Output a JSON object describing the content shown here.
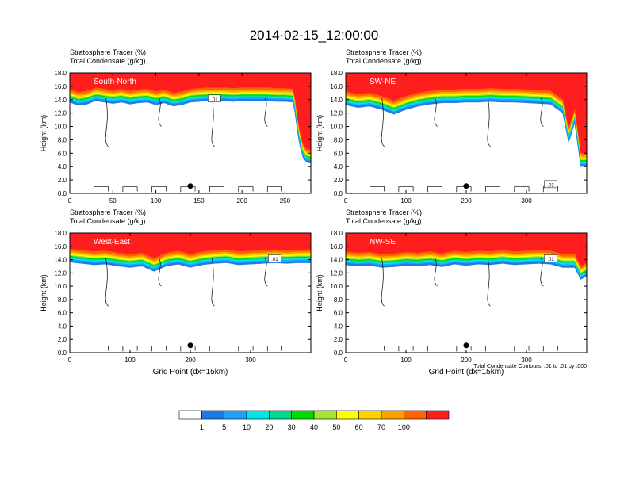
{
  "main_title": "2014-02-15_12:00:00",
  "panel_header": {
    "line1": "Stratosphere Tracer   (%)",
    "line2": "Total Condensate   (g/kg)"
  },
  "y_axis_label": "Height (km)",
  "x_axis_label": "Grid Point (dx=15km)",
  "contour_note": "Total Condensate Contours: .01 to .01 by .000",
  "contour_labels": [
    ".01",
    ".01",
    ".01",
    ".01"
  ],
  "colors": {
    "palette": [
      "#ffffff",
      "#1e7ae6",
      "#1ea0ff",
      "#00e6e6",
      "#00d88c",
      "#00dc00",
      "#a0e632",
      "#ffff00",
      "#ffd200",
      "#ffa000",
      "#ff6400",
      "#ff1e1e"
    ]
  },
  "chart_data": [
    {
      "type": "heatmap",
      "panel_label": "South-North",
      "x_ticks": [
        0,
        50,
        100,
        150,
        200,
        250
      ],
      "xlim": [
        0,
        280
      ],
      "y_ticks": [
        "0.0",
        "2.0",
        "4.0",
        "6.0",
        "8.0",
        "10.0",
        "12.0",
        "14.0",
        "16.0",
        "18.0"
      ],
      "ylim": [
        0,
        18
      ],
      "marker_x": 140,
      "profile": {
        "x": [
          0,
          10,
          20,
          30,
          40,
          50,
          60,
          70,
          80,
          90,
          100,
          110,
          120,
          130,
          140,
          150,
          160,
          170,
          180,
          190,
          200,
          210,
          220,
          230,
          240,
          250,
          260,
          265,
          270,
          275,
          280
        ],
        "top": [
          15.6,
          15.1,
          15.3,
          15.8,
          15.6,
          15.4,
          15.6,
          15.3,
          15.5,
          15.6,
          15.2,
          15.5,
          15.0,
          15.2,
          15.6,
          15.7,
          15.8,
          15.8,
          15.8,
          15.7,
          15.8,
          15.8,
          15.8,
          15.8,
          15.7,
          15.7,
          15.6,
          10.5,
          7.5,
          6.6,
          6.5
        ]
      }
    },
    {
      "type": "heatmap",
      "panel_label": "SW-NE",
      "x_ticks": [
        0,
        100,
        200,
        300
      ],
      "xlim": [
        0,
        400
      ],
      "y_ticks": [
        "0.0",
        "2.0",
        "4.0",
        "6.0",
        "8.0",
        "10.0",
        "12.0",
        "14.0",
        "16.0",
        "18.0"
      ],
      "ylim": [
        0,
        18
      ],
      "marker_x": 200,
      "profile": {
        "x": [
          0,
          20,
          40,
          60,
          80,
          100,
          120,
          140,
          160,
          180,
          200,
          220,
          240,
          260,
          280,
          300,
          320,
          340,
          360,
          370,
          380,
          390,
          400
        ],
        "top": [
          15.2,
          14.8,
          15.0,
          14.5,
          13.8,
          14.5,
          15.0,
          15.3,
          15.5,
          15.5,
          15.6,
          15.6,
          15.7,
          15.6,
          15.6,
          15.5,
          15.4,
          15.3,
          14.0,
          9.5,
          12.5,
          6.0,
          6.0
        ]
      }
    },
    {
      "type": "heatmap",
      "panel_label": "West-East",
      "x_ticks": [
        0,
        100,
        200,
        300
      ],
      "xlim": [
        0,
        400
      ],
      "y_ticks": [
        "0.0",
        "2.0",
        "4.0",
        "6.0",
        "8.0",
        "10.0",
        "12.0",
        "14.0",
        "16.0",
        "18.0"
      ],
      "ylim": [
        0,
        18
      ],
      "marker_x": 200,
      "profile": {
        "x": [
          0,
          20,
          40,
          60,
          80,
          100,
          120,
          140,
          160,
          180,
          200,
          220,
          240,
          260,
          280,
          300,
          320,
          340,
          360,
          380,
          400
        ],
        "top": [
          15.6,
          15.4,
          15.2,
          15.3,
          15.0,
          14.8,
          15.0,
          14.2,
          15.0,
          15.3,
          14.8,
          15.2,
          15.4,
          15.5,
          15.2,
          15.3,
          15.4,
          15.5,
          15.4,
          15.5,
          15.5
        ]
      }
    },
    {
      "type": "heatmap",
      "panel_label": "NW-SE",
      "x_ticks": [
        0,
        100,
        200,
        300
      ],
      "xlim": [
        0,
        400
      ],
      "y_ticks": [
        "0.0",
        "2.0",
        "4.0",
        "6.0",
        "8.0",
        "10.0",
        "12.0",
        "14.0",
        "16.0",
        "18.0"
      ],
      "ylim": [
        0,
        18
      ],
      "marker_x": 200,
      "profile": {
        "x": [
          0,
          20,
          40,
          60,
          80,
          100,
          120,
          140,
          160,
          180,
          200,
          220,
          240,
          260,
          280,
          300,
          320,
          340,
          360,
          380,
          390,
          400
        ],
        "top": [
          15.2,
          15.0,
          15.1,
          14.8,
          14.9,
          15.1,
          15.0,
          15.2,
          14.9,
          15.3,
          15.1,
          15.3,
          15.2,
          15.4,
          15.2,
          15.3,
          15.4,
          15.3,
          14.8,
          14.8,
          13.0,
          13.5
        ]
      }
    }
  ],
  "colorbar": {
    "labels": [
      "1",
      "5",
      "10",
      "20",
      "30",
      "40",
      "50",
      "60",
      "70",
      "100"
    ]
  }
}
